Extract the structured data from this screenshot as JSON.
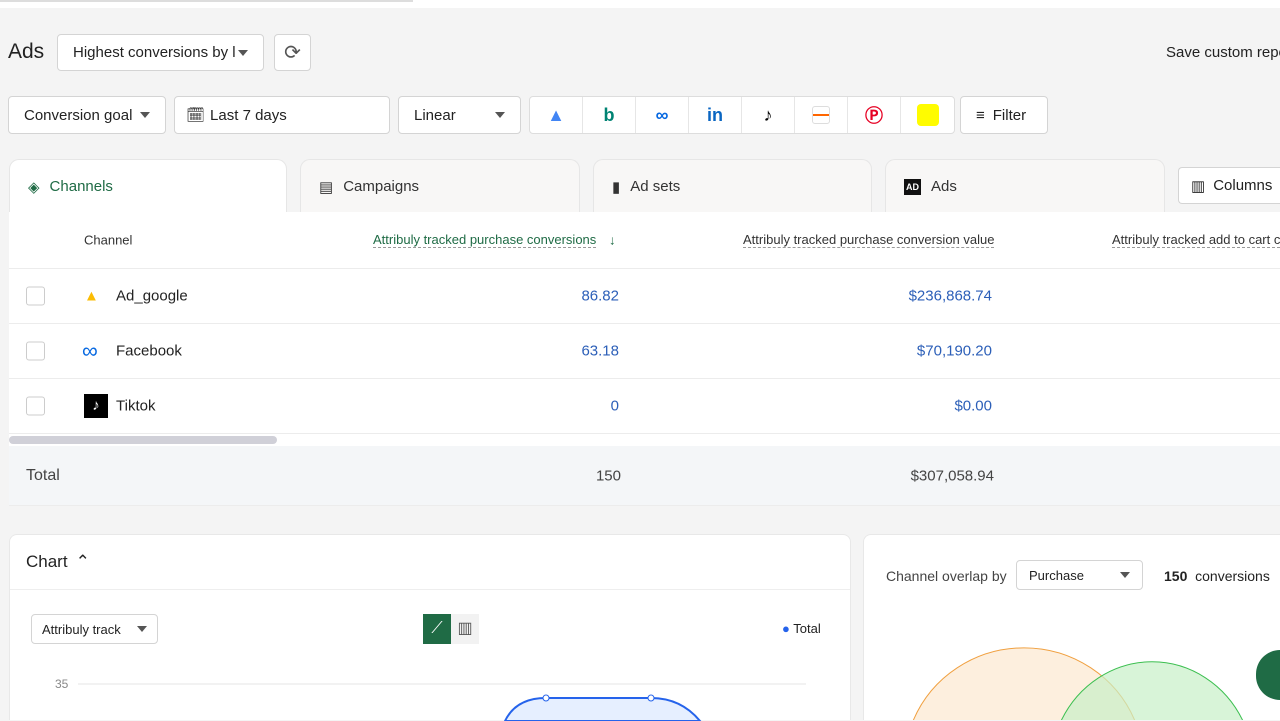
{
  "header": {
    "title": "Ads",
    "report_select": "Highest conversions by l",
    "save_label": "Save custom repo"
  },
  "filters": {
    "goal": "Conversion goal",
    "date": "Last 7 days",
    "model": "Linear",
    "filter": "Filter"
  },
  "platforms": [
    "google-ads",
    "bing",
    "meta",
    "linkedin",
    "tiktok",
    "other",
    "pinterest",
    "snapchat"
  ],
  "tabs": [
    {
      "label": "Channels"
    },
    {
      "label": "Campaigns"
    },
    {
      "label": "Ad sets"
    },
    {
      "label": "Ads"
    }
  ],
  "columns_label": "Columns",
  "table": {
    "headers": [
      "Channel",
      "Attribuly tracked purchase conversions",
      "Attribuly tracked purchase conversion value",
      "Attribuly tracked add to cart c"
    ],
    "rows": [
      {
        "channel": "Ad_google",
        "conv": "86.82",
        "value": "$236,868.74"
      },
      {
        "channel": "Facebook",
        "conv": "63.18",
        "value": "$70,190.20"
      },
      {
        "channel": "Tiktok",
        "conv": "0",
        "value": "$0.00"
      }
    ],
    "total": {
      "label": "Total",
      "conv": "150",
      "value": "$307,058.94"
    }
  },
  "chart": {
    "title": "Chart",
    "metric_select": "Attribuly track",
    "legend": "Total",
    "tick": "35",
    "color": "#2563eb"
  },
  "overlap": {
    "label": "Channel overlap by",
    "select": "Purchase",
    "count": "150",
    "unit": "conversions"
  },
  "chart_data": {
    "type": "line",
    "series": [
      {
        "name": "Total",
        "values": [
          33,
          33
        ]
      }
    ],
    "yticks": [
      35
    ]
  }
}
